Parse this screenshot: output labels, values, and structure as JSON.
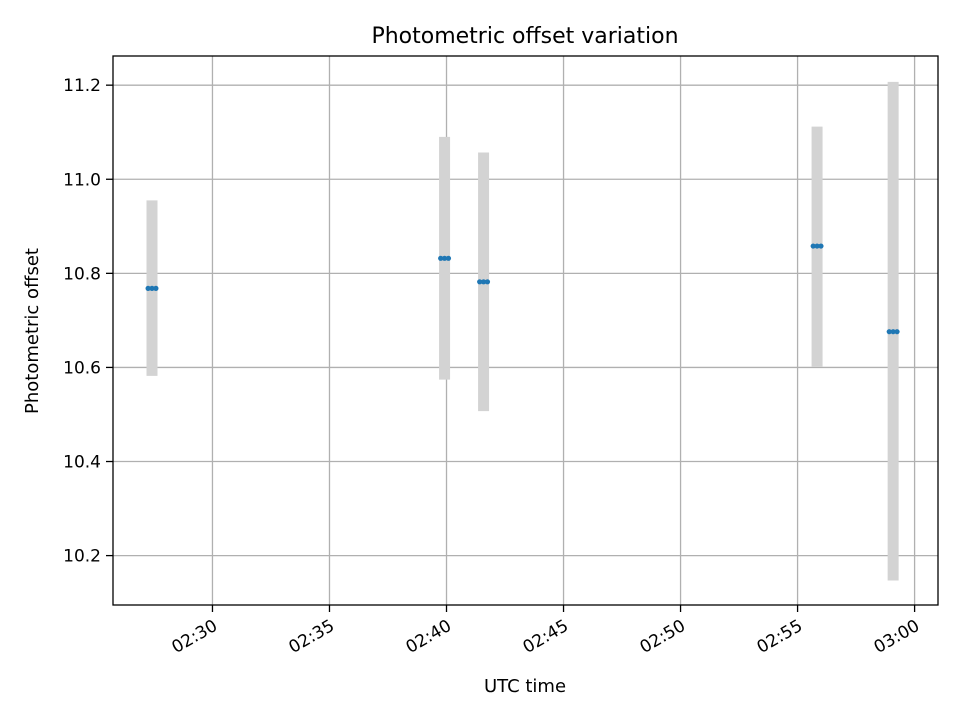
{
  "chart_data": {
    "type": "scatter",
    "title": "Photometric offset variation",
    "xlabel": "UTC time",
    "ylabel": "Photometric offset",
    "grid": true,
    "x_ticks": [
      "02:30",
      "02:35",
      "02:40",
      "02:45",
      "02:50",
      "02:55",
      "03:00"
    ],
    "y_ticks": [
      "10.2",
      "10.4",
      "10.6",
      "10.8",
      "11.0",
      "11.2"
    ],
    "x_tick_values": [
      "02:30",
      "02:35",
      "02:40",
      "02:45",
      "02:50",
      "02:55",
      "03:00"
    ],
    "y_tick_values": [
      10.2,
      10.4,
      10.6,
      10.8,
      11.0,
      11.2
    ],
    "xlim": [
      "02:25:45",
      "03:01:00"
    ],
    "ylim": [
      10.095,
      11.262
    ],
    "errorbar_color": "#d3d3d3",
    "point_color": "#1f77b4",
    "groups": [
      {
        "x": [
          "02:27:15",
          "02:27:25",
          "02:27:35"
        ],
        "y": 10.768,
        "error_low": 10.582,
        "error_high": 10.955
      },
      {
        "x": [
          "02:39:45",
          "02:39:55",
          "02:40:05"
        ],
        "y": 10.832,
        "error_low": 10.574,
        "error_high": 11.09
      },
      {
        "x": [
          "02:41:25",
          "02:41:35",
          "02:41:45"
        ],
        "y": 10.782,
        "error_low": 10.507,
        "error_high": 11.057
      },
      {
        "x": [
          "02:55:40",
          "02:55:50",
          "02:56:00"
        ],
        "y": 10.858,
        "error_low": 10.602,
        "error_high": 11.112
      },
      {
        "x": [
          "02:58:55",
          "02:59:05",
          "02:59:15"
        ],
        "y": 10.676,
        "error_low": 10.147,
        "error_high": 11.207
      }
    ]
  }
}
